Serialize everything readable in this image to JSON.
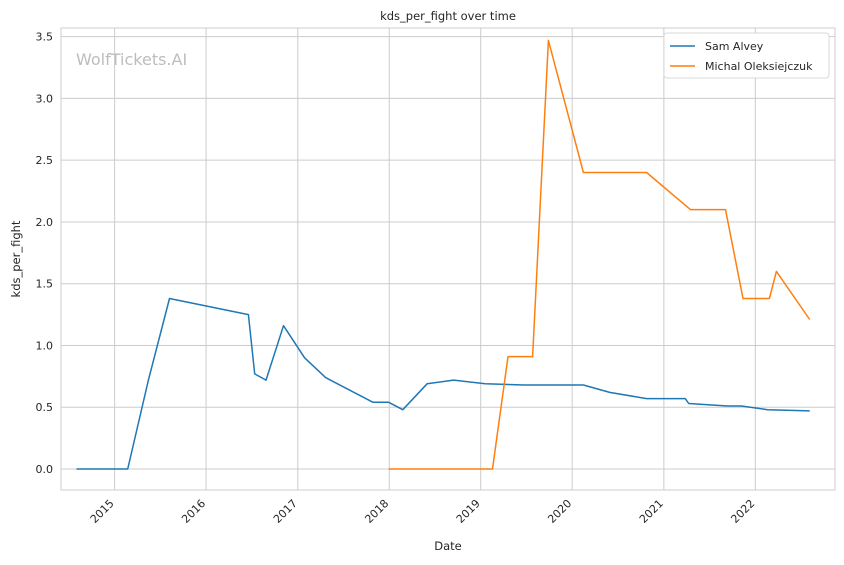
{
  "chart_data": {
    "type": "line",
    "title": "kds_per_fight over time",
    "xlabel": "Date",
    "ylabel": "kds_per_fight",
    "watermark": "WolfTickets.AI",
    "xlim": [
      "2014-06-01",
      "2022-11-15"
    ],
    "ylim": [
      -0.17,
      3.57
    ],
    "yticks": [
      0.0,
      0.5,
      1.0,
      1.5,
      2.0,
      2.5,
      3.0,
      3.5
    ],
    "ytick_labels": [
      "0.0",
      "0.5",
      "1.0",
      "1.5",
      "2.0",
      "2.5",
      "3.0",
      "3.5"
    ],
    "xticks": [
      "2015-01-01",
      "2016-01-01",
      "2017-01-01",
      "2018-01-01",
      "2019-01-01",
      "2020-01-01",
      "2021-01-01",
      "2022-01-01"
    ],
    "xtick_labels": [
      "2015",
      "2016",
      "2017",
      "2018",
      "2019",
      "2020",
      "2021",
      "2022"
    ],
    "grid": true,
    "legend_position": "top-right",
    "series": [
      {
        "name": "Sam Alvey",
        "color": "#1f77b4",
        "points": [
          [
            "2014-08-02",
            0.0
          ],
          [
            "2015-02-22",
            0.0
          ],
          [
            "2015-05-16",
            0.72
          ],
          [
            "2015-08-08",
            1.38
          ],
          [
            "2016-06-18",
            1.25
          ],
          [
            "2016-07-13",
            0.77
          ],
          [
            "2016-08-27",
            0.72
          ],
          [
            "2016-11-05",
            1.16
          ],
          [
            "2017-01-28",
            0.9
          ],
          [
            "2017-04-22",
            0.74
          ],
          [
            "2017-10-28",
            0.54
          ],
          [
            "2017-12-30",
            0.54
          ],
          [
            "2018-02-24",
            0.48
          ],
          [
            "2018-06-01",
            0.69
          ],
          [
            "2018-09-15",
            0.72
          ],
          [
            "2019-01-19",
            0.69
          ],
          [
            "2019-06-22",
            0.68
          ],
          [
            "2020-02-15",
            0.68
          ],
          [
            "2020-05-30",
            0.62
          ],
          [
            "2020-10-24",
            0.57
          ],
          [
            "2021-03-27",
            0.57
          ],
          [
            "2021-04-10",
            0.53
          ],
          [
            "2021-09-11",
            0.51
          ],
          [
            "2021-11-06",
            0.51
          ],
          [
            "2022-02-19",
            0.48
          ],
          [
            "2022-08-06",
            0.47
          ]
        ]
      },
      {
        "name": "Michal Oleksiejczuk",
        "color": "#ff7f0e",
        "points": [
          [
            "2017-12-30",
            0.0
          ],
          [
            "2019-02-17",
            0.0
          ],
          [
            "2019-04-20",
            0.91
          ],
          [
            "2019-07-27",
            0.91
          ],
          [
            "2019-09-28",
            3.47
          ],
          [
            "2020-02-15",
            2.4
          ],
          [
            "2020-10-24",
            2.4
          ],
          [
            "2021-04-17",
            2.1
          ],
          [
            "2021-09-04",
            2.1
          ],
          [
            "2021-11-13",
            1.38
          ],
          [
            "2022-02-26",
            1.38
          ],
          [
            "2022-03-26",
            1.6
          ],
          [
            "2022-08-06",
            1.21
          ]
        ]
      }
    ]
  }
}
